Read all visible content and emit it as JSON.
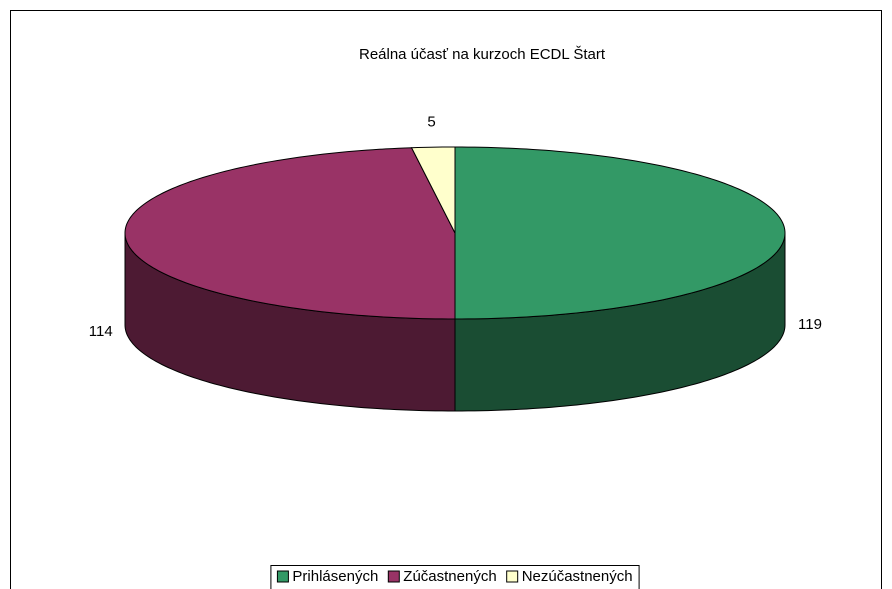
{
  "chart_data": {
    "type": "pie3d",
    "title": "Reálna účasť na kurzoch ECDL Štart",
    "categories": [
      "Prihlásených",
      "Zúčastnených",
      "Nezúčastnených"
    ],
    "values": [
      119,
      114,
      5
    ],
    "colors": [
      "#339966",
      "#993366",
      "#ffffcc"
    ],
    "legend": "bottom"
  }
}
